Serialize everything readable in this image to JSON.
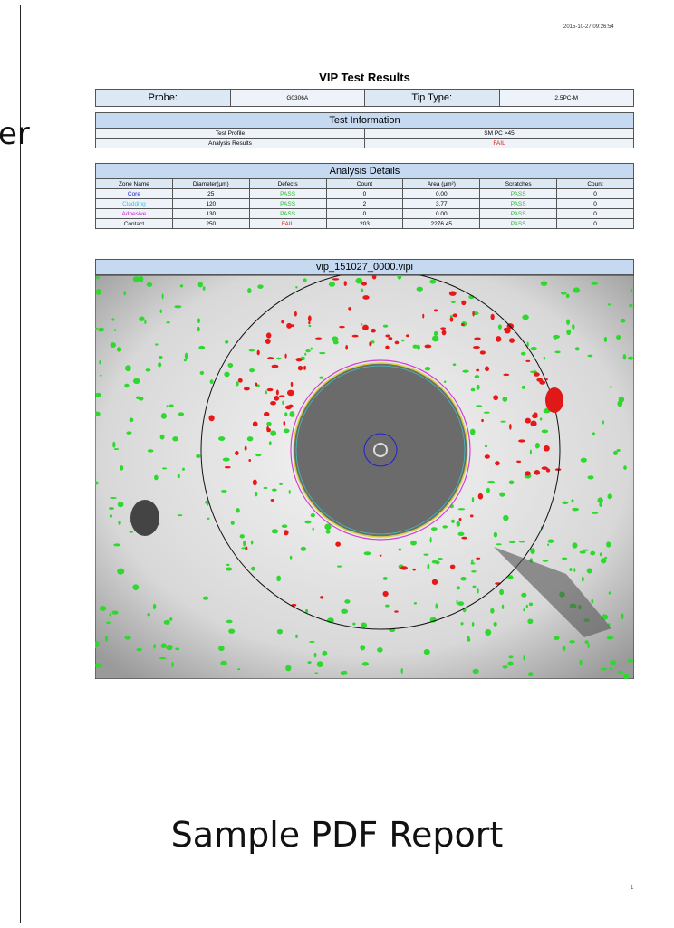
{
  "side_text": "er",
  "header": {
    "timestamp": "2015-10-27 09:26:54",
    "title": "VIP Test Results"
  },
  "probe_table": {
    "probe_label": "Probe:",
    "probe": "G0306A",
    "tip_label": "Tip Type:",
    "tip": "2.5PC-M"
  },
  "test_info": {
    "title": "Test Information",
    "rows": [
      [
        "Test Profile",
        "SM PC >45"
      ],
      [
        "Analysis Results",
        "FAIL"
      ]
    ]
  },
  "analysis": {
    "title": "Analysis Details",
    "columns": [
      "Zone Name",
      "Diameter(µm)",
      "Defects",
      "Count",
      "Area (µm²)",
      "Scratches",
      "Count"
    ],
    "rows": [
      [
        "Core",
        "25",
        "PASS",
        "0",
        "0.00",
        "PASS",
        "0"
      ],
      [
        "Cladding",
        "120",
        "PASS",
        "2",
        "3.77",
        "PASS",
        "0"
      ],
      [
        "Adhesive",
        "130",
        "PASS",
        "0",
        "0.00",
        "PASS",
        "0"
      ],
      [
        "Contact",
        "250",
        "FAIL",
        "203",
        "2276.45",
        "PASS",
        "0"
      ]
    ]
  },
  "image": {
    "title": "vip_151027_0000.vipi"
  },
  "footer": {
    "caption": "Sample PDF Report",
    "page": "1"
  }
}
